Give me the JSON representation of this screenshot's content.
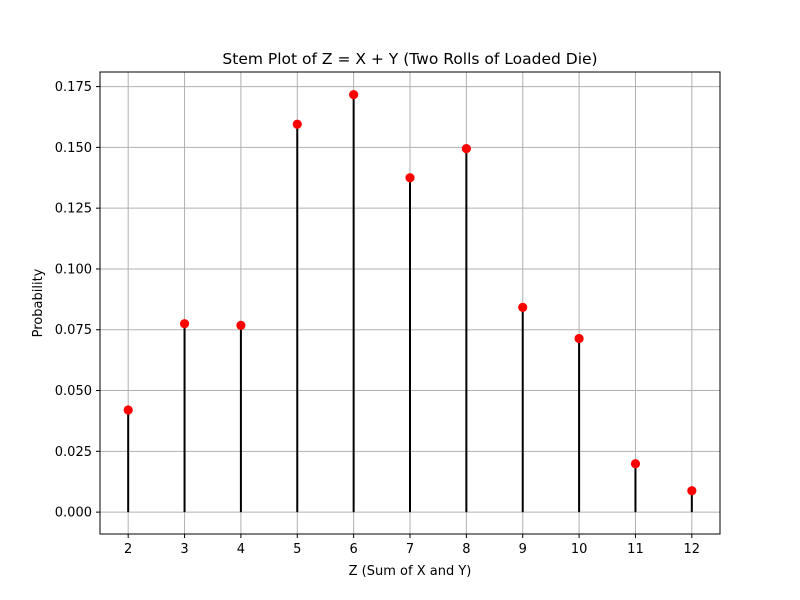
{
  "chart_data": {
    "type": "stem",
    "title": "Stem Plot of Z = X + Y (Two Rolls of Loaded Die)",
    "xlabel": "Z (Sum of X and Y)",
    "ylabel": "Probability",
    "x": [
      2,
      3,
      4,
      5,
      6,
      7,
      8,
      9,
      10,
      11,
      12
    ],
    "y": [
      0.042,
      0.0775,
      0.0768,
      0.1595,
      0.1717,
      0.1375,
      0.1495,
      0.0842,
      0.0714,
      0.0199,
      0.0088
    ],
    "xticks": [
      "2",
      "3",
      "4",
      "5",
      "6",
      "7",
      "8",
      "9",
      "10",
      "11",
      "12"
    ],
    "yticks": [
      "0.000",
      "0.025",
      "0.050",
      "0.075",
      "0.100",
      "0.125",
      "0.150",
      "0.175"
    ],
    "xlim": [
      1.5,
      12.5
    ],
    "ylim": [
      -0.009,
      0.181
    ],
    "grid": true,
    "stem_color": "#000000",
    "marker_color": "#ff0000"
  }
}
